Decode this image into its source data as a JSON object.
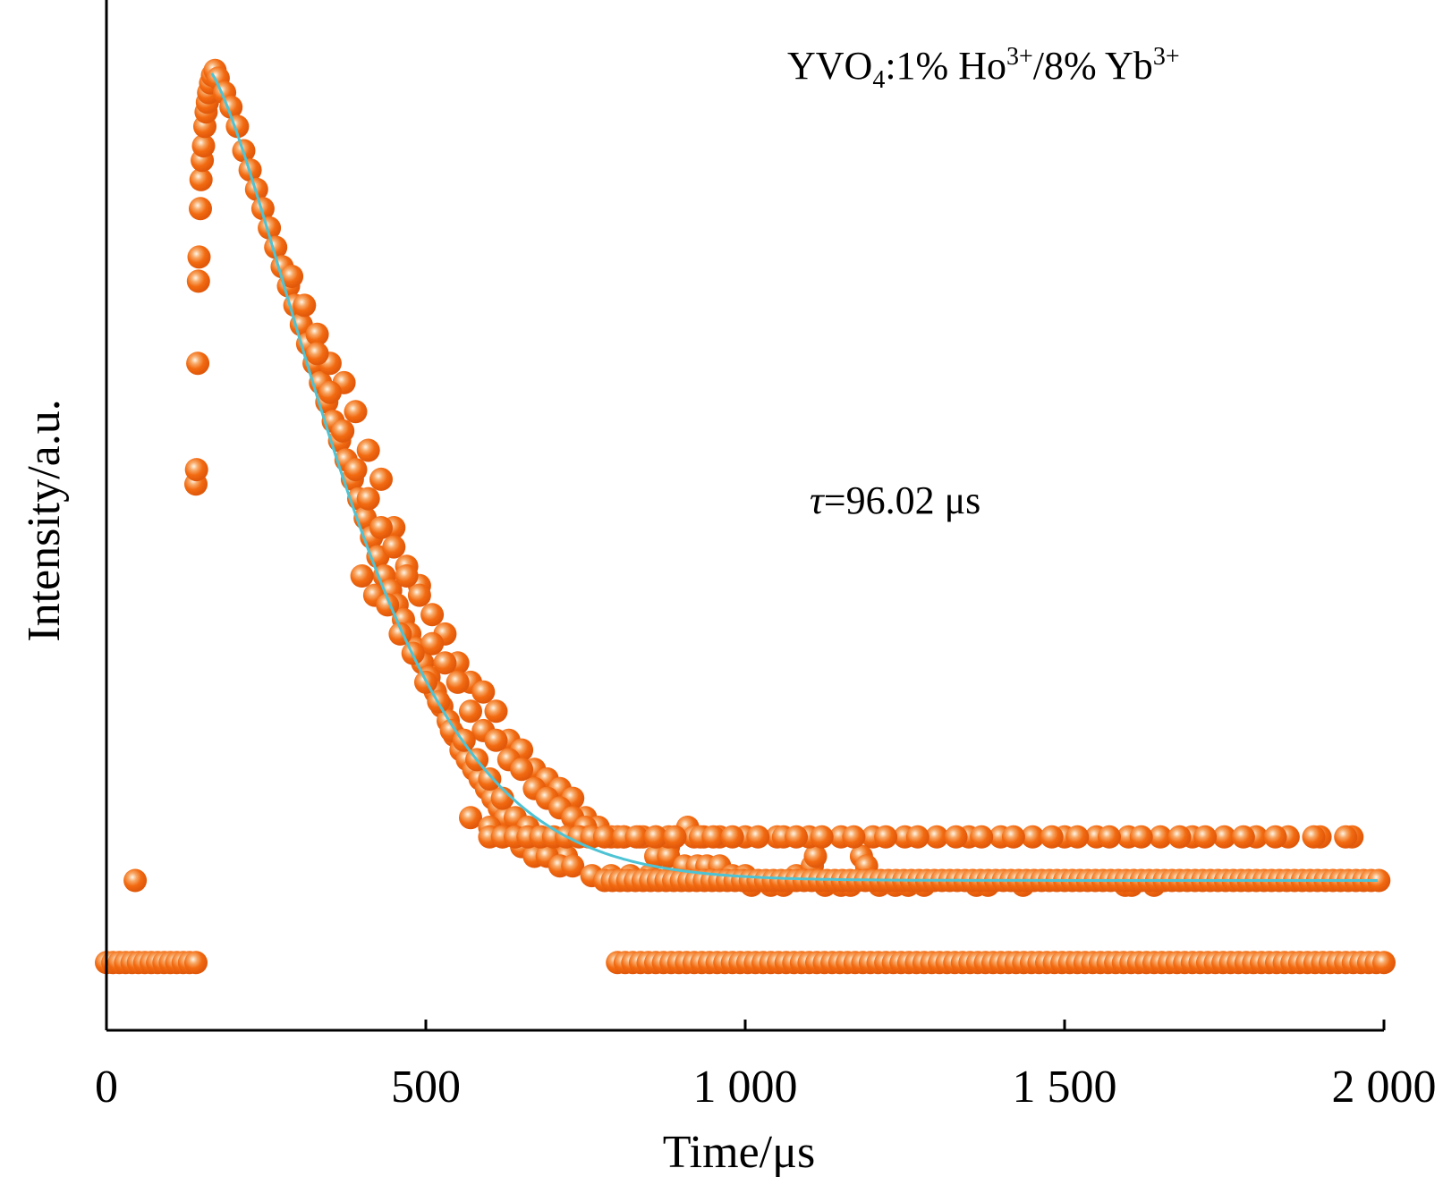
{
  "chart_data": {
    "type": "scatter",
    "xlabel": "Time/μs",
    "ylabel": "Intensity/a.u.",
    "xlim": [
      0,
      2000
    ],
    "ylim": [
      0,
      1
    ],
    "x_ticks": [
      0,
      500,
      1000,
      1500,
      2000
    ],
    "x_tick_labels": [
      "0",
      "500",
      "1 000",
      "1 500",
      "2 000"
    ],
    "grid": false,
    "annotation_sample": {
      "base": "YVO",
      "base_sub": "4",
      "mid": ":1% Ho",
      "mid_sup": "3+",
      "tail": "/8% Yb",
      "tail_sup": "3+"
    },
    "annotation_tau": {
      "symbol": "τ",
      "value": "=96.02 μs"
    },
    "series": [
      {
        "role": "measured",
        "marker": "sphere",
        "color": "#F26A10",
        "points": [
          [
            0,
            0.07
          ],
          [
            10,
            0.07
          ],
          [
            20,
            0.07
          ],
          [
            30,
            0.07
          ],
          [
            40,
            0.07
          ],
          [
            50,
            0.07
          ],
          [
            60,
            0.07
          ],
          [
            70,
            0.07
          ],
          [
            80,
            0.07
          ],
          [
            90,
            0.07
          ],
          [
            100,
            0.07
          ],
          [
            110,
            0.07
          ],
          [
            120,
            0.07
          ],
          [
            130,
            0.07
          ],
          [
            140,
            0.07
          ],
          [
            45,
            0.155
          ],
          [
            140,
            0.565
          ],
          [
            141,
            0.58
          ],
          [
            143,
            0.69
          ],
          [
            144,
            0.775
          ],
          [
            145,
            0.8
          ],
          [
            147,
            0.85
          ],
          [
            148,
            0.88
          ],
          [
            150,
            0.9
          ],
          [
            152,
            0.915
          ],
          [
            154,
            0.935
          ],
          [
            156,
            0.95
          ],
          [
            158,
            0.96
          ],
          [
            160,
            0.97
          ],
          [
            163,
            0.98
          ],
          [
            166,
            0.988
          ],
          [
            170,
            0.993
          ],
          [
            175,
            0.985
          ],
          [
            185,
            0.97
          ],
          [
            195,
            0.955
          ],
          [
            205,
            0.935
          ],
          [
            215,
            0.91
          ],
          [
            225,
            0.89
          ],
          [
            235,
            0.87
          ],
          [
            245,
            0.85
          ],
          [
            255,
            0.83
          ],
          [
            265,
            0.81
          ],
          [
            275,
            0.79
          ],
          [
            285,
            0.77
          ],
          [
            295,
            0.75
          ],
          [
            305,
            0.73
          ],
          [
            315,
            0.71
          ],
          [
            325,
            0.69
          ],
          [
            335,
            0.67
          ],
          [
            345,
            0.65
          ],
          [
            355,
            0.63
          ],
          [
            365,
            0.61
          ],
          [
            375,
            0.59
          ],
          [
            385,
            0.57
          ],
          [
            395,
            0.55
          ],
          [
            405,
            0.53
          ],
          [
            415,
            0.51
          ],
          [
            425,
            0.49
          ],
          [
            435,
            0.47
          ],
          [
            445,
            0.455
          ],
          [
            455,
            0.44
          ],
          [
            465,
            0.425
          ],
          [
            475,
            0.41
          ],
          [
            485,
            0.395
          ],
          [
            495,
            0.38
          ],
          [
            505,
            0.365
          ],
          [
            515,
            0.35
          ],
          [
            525,
            0.335
          ],
          [
            535,
            0.32
          ],
          [
            545,
            0.305
          ],
          [
            555,
            0.29
          ],
          [
            565,
            0.28
          ],
          [
            575,
            0.27
          ],
          [
            585,
            0.26
          ],
          [
            595,
            0.25
          ],
          [
            605,
            0.24
          ],
          [
            615,
            0.23
          ],
          [
            625,
            0.22
          ],
          [
            330,
            0.72
          ],
          [
            350,
            0.69
          ],
          [
            372,
            0.67
          ],
          [
            390,
            0.64
          ],
          [
            410,
            0.6
          ],
          [
            430,
            0.57
          ],
          [
            450,
            0.52
          ],
          [
            470,
            0.48
          ],
          [
            490,
            0.46
          ],
          [
            510,
            0.43
          ],
          [
            530,
            0.41
          ],
          [
            550,
            0.38
          ],
          [
            570,
            0.36
          ],
          [
            590,
            0.35
          ],
          [
            610,
            0.33
          ],
          [
            630,
            0.3
          ],
          [
            650,
            0.29
          ],
          [
            670,
            0.27
          ],
          [
            690,
            0.26
          ],
          [
            710,
            0.25
          ],
          [
            730,
            0.24
          ],
          [
            750,
            0.22
          ],
          [
            770,
            0.21
          ],
          [
            790,
            0.2
          ],
          [
            810,
            0.2
          ],
          [
            835,
            0.2
          ],
          [
            860,
            0.2
          ],
          [
            880,
            0.19
          ],
          [
            910,
            0.21
          ],
          [
            935,
            0.2
          ],
          [
            290,
            0.78
          ],
          [
            310,
            0.75
          ],
          [
            330,
            0.7
          ],
          [
            350,
            0.66
          ],
          [
            370,
            0.62
          ],
          [
            390,
            0.58
          ],
          [
            410,
            0.55
          ],
          [
            430,
            0.52
          ],
          [
            450,
            0.5
          ],
          [
            470,
            0.47
          ],
          [
            490,
            0.45
          ],
          [
            510,
            0.4
          ],
          [
            530,
            0.38
          ],
          [
            550,
            0.36
          ],
          [
            570,
            0.33
          ],
          [
            590,
            0.31
          ],
          [
            610,
            0.3
          ],
          [
            630,
            0.28
          ],
          [
            650,
            0.27
          ],
          [
            670,
            0.25
          ],
          [
            690,
            0.24
          ],
          [
            710,
            0.23
          ],
          [
            730,
            0.22
          ],
          [
            750,
            0.21
          ],
          [
            400,
            0.47
          ],
          [
            420,
            0.45
          ],
          [
            440,
            0.44
          ],
          [
            460,
            0.41
          ],
          [
            480,
            0.39
          ],
          [
            500,
            0.36
          ],
          [
            520,
            0.34
          ],
          [
            540,
            0.31
          ],
          [
            560,
            0.3
          ],
          [
            580,
            0.28
          ],
          [
            600,
            0.26
          ],
          [
            620,
            0.24
          ],
          [
            640,
            0.22
          ],
          [
            660,
            0.21
          ],
          [
            680,
            0.2
          ],
          [
            700,
            0.19
          ],
          [
            720,
            0.18
          ],
          [
            570,
            0.22
          ],
          [
            600,
            0.21
          ],
          [
            620,
            0.2
          ],
          [
            650,
            0.19
          ],
          [
            670,
            0.18
          ],
          [
            690,
            0.18
          ],
          [
            710,
            0.17
          ],
          [
            730,
            0.17
          ],
          [
            760,
            0.16
          ],
          [
            790,
            0.16
          ],
          [
            820,
            0.16
          ],
          [
            850,
            0.16
          ],
          [
            860,
            0.18
          ],
          [
            880,
            0.18
          ],
          [
            905,
            0.17
          ],
          [
            925,
            0.17
          ],
          [
            940,
            0.17
          ],
          [
            960,
            0.17
          ],
          [
            980,
            0.16
          ],
          [
            1000,
            0.16
          ],
          [
            1010,
            0.15
          ],
          [
            1040,
            0.15
          ],
          [
            1060,
            0.15
          ],
          [
            1080,
            0.16
          ],
          [
            1105,
            0.17
          ],
          [
            1110,
            0.18
          ],
          [
            1125,
            0.15
          ],
          [
            1150,
            0.15
          ],
          [
            1165,
            0.15
          ],
          [
            1182,
            0.18
          ],
          [
            1190,
            0.17
          ],
          [
            1210,
            0.15
          ],
          [
            1235,
            0.15
          ],
          [
            1255,
            0.15
          ],
          [
            1280,
            0.15
          ],
          [
            1362,
            0.15
          ],
          [
            1380,
            0.15
          ],
          [
            1435,
            0.15
          ],
          [
            1595,
            0.15
          ],
          [
            1605,
            0.15
          ],
          [
            1640,
            0.15
          ],
          [
            755,
            0.2
          ],
          [
            800,
            0.2
          ],
          [
            840,
            0.2
          ],
          [
            880,
            0.2
          ],
          [
            920,
            0.2
          ],
          [
            960,
            0.2
          ],
          [
            1000,
            0.2
          ],
          [
            1050,
            0.2
          ],
          [
            1100,
            0.2
          ],
          [
            1150,
            0.2
          ],
          [
            1200,
            0.2
          ],
          [
            1250,
            0.2
          ],
          [
            1300,
            0.2
          ],
          [
            1350,
            0.2
          ],
          [
            1400,
            0.2
          ],
          [
            1450,
            0.2
          ],
          [
            1500,
            0.2
          ],
          [
            1550,
            0.2
          ],
          [
            1600,
            0.2
          ],
          [
            1650,
            0.2
          ],
          [
            1700,
            0.2
          ],
          [
            1750,
            0.2
          ],
          [
            1800,
            0.2
          ],
          [
            1850,
            0.2
          ],
          [
            1900,
            0.2
          ],
          [
            1950,
            0.2
          ],
          [
            600,
            0.2
          ],
          [
            620,
            0.2
          ],
          [
            640,
            0.2
          ],
          [
            660,
            0.2
          ],
          [
            680,
            0.2
          ],
          [
            700,
            0.2
          ],
          [
            720,
            0.2
          ],
          [
            740,
            0.2
          ],
          [
            760,
            0.2
          ],
          [
            780,
            0.2
          ],
          [
            810,
            0.2
          ],
          [
            830,
            0.2
          ],
          [
            860,
            0.2
          ],
          [
            890,
            0.2
          ],
          [
            930,
            0.2
          ],
          [
            950,
            0.2
          ],
          [
            980,
            0.2
          ],
          [
            1020,
            0.2
          ],
          [
            1060,
            0.2
          ],
          [
            1080,
            0.2
          ],
          [
            1120,
            0.2
          ],
          [
            1170,
            0.2
          ],
          [
            1220,
            0.2
          ],
          [
            1270,
            0.2
          ],
          [
            1330,
            0.2
          ],
          [
            1370,
            0.2
          ],
          [
            1420,
            0.2
          ],
          [
            1480,
            0.2
          ],
          [
            1520,
            0.2
          ],
          [
            1570,
            0.2
          ],
          [
            1620,
            0.2
          ],
          [
            1680,
            0.2
          ],
          [
            1720,
            0.2
          ],
          [
            1780,
            0.2
          ],
          [
            1830,
            0.2
          ],
          [
            1890,
            0.2
          ],
          [
            1940,
            0.2
          ]
        ],
        "baseline_rows": [
          {
            "y": 0.155,
            "x_start": 780,
            "x_end": 2000,
            "step": 12
          },
          {
            "y": 0.07,
            "x_start": 800,
            "x_end": 2000,
            "step": 12
          }
        ]
      },
      {
        "role": "fit",
        "type": "line",
        "color": "#4DC3D4",
        "x_start": 165,
        "x_end": 1990,
        "y0": 0.99,
        "y_inf": 0.155,
        "decay_scale": 240,
        "shape_exp": 1.6
      }
    ]
  }
}
